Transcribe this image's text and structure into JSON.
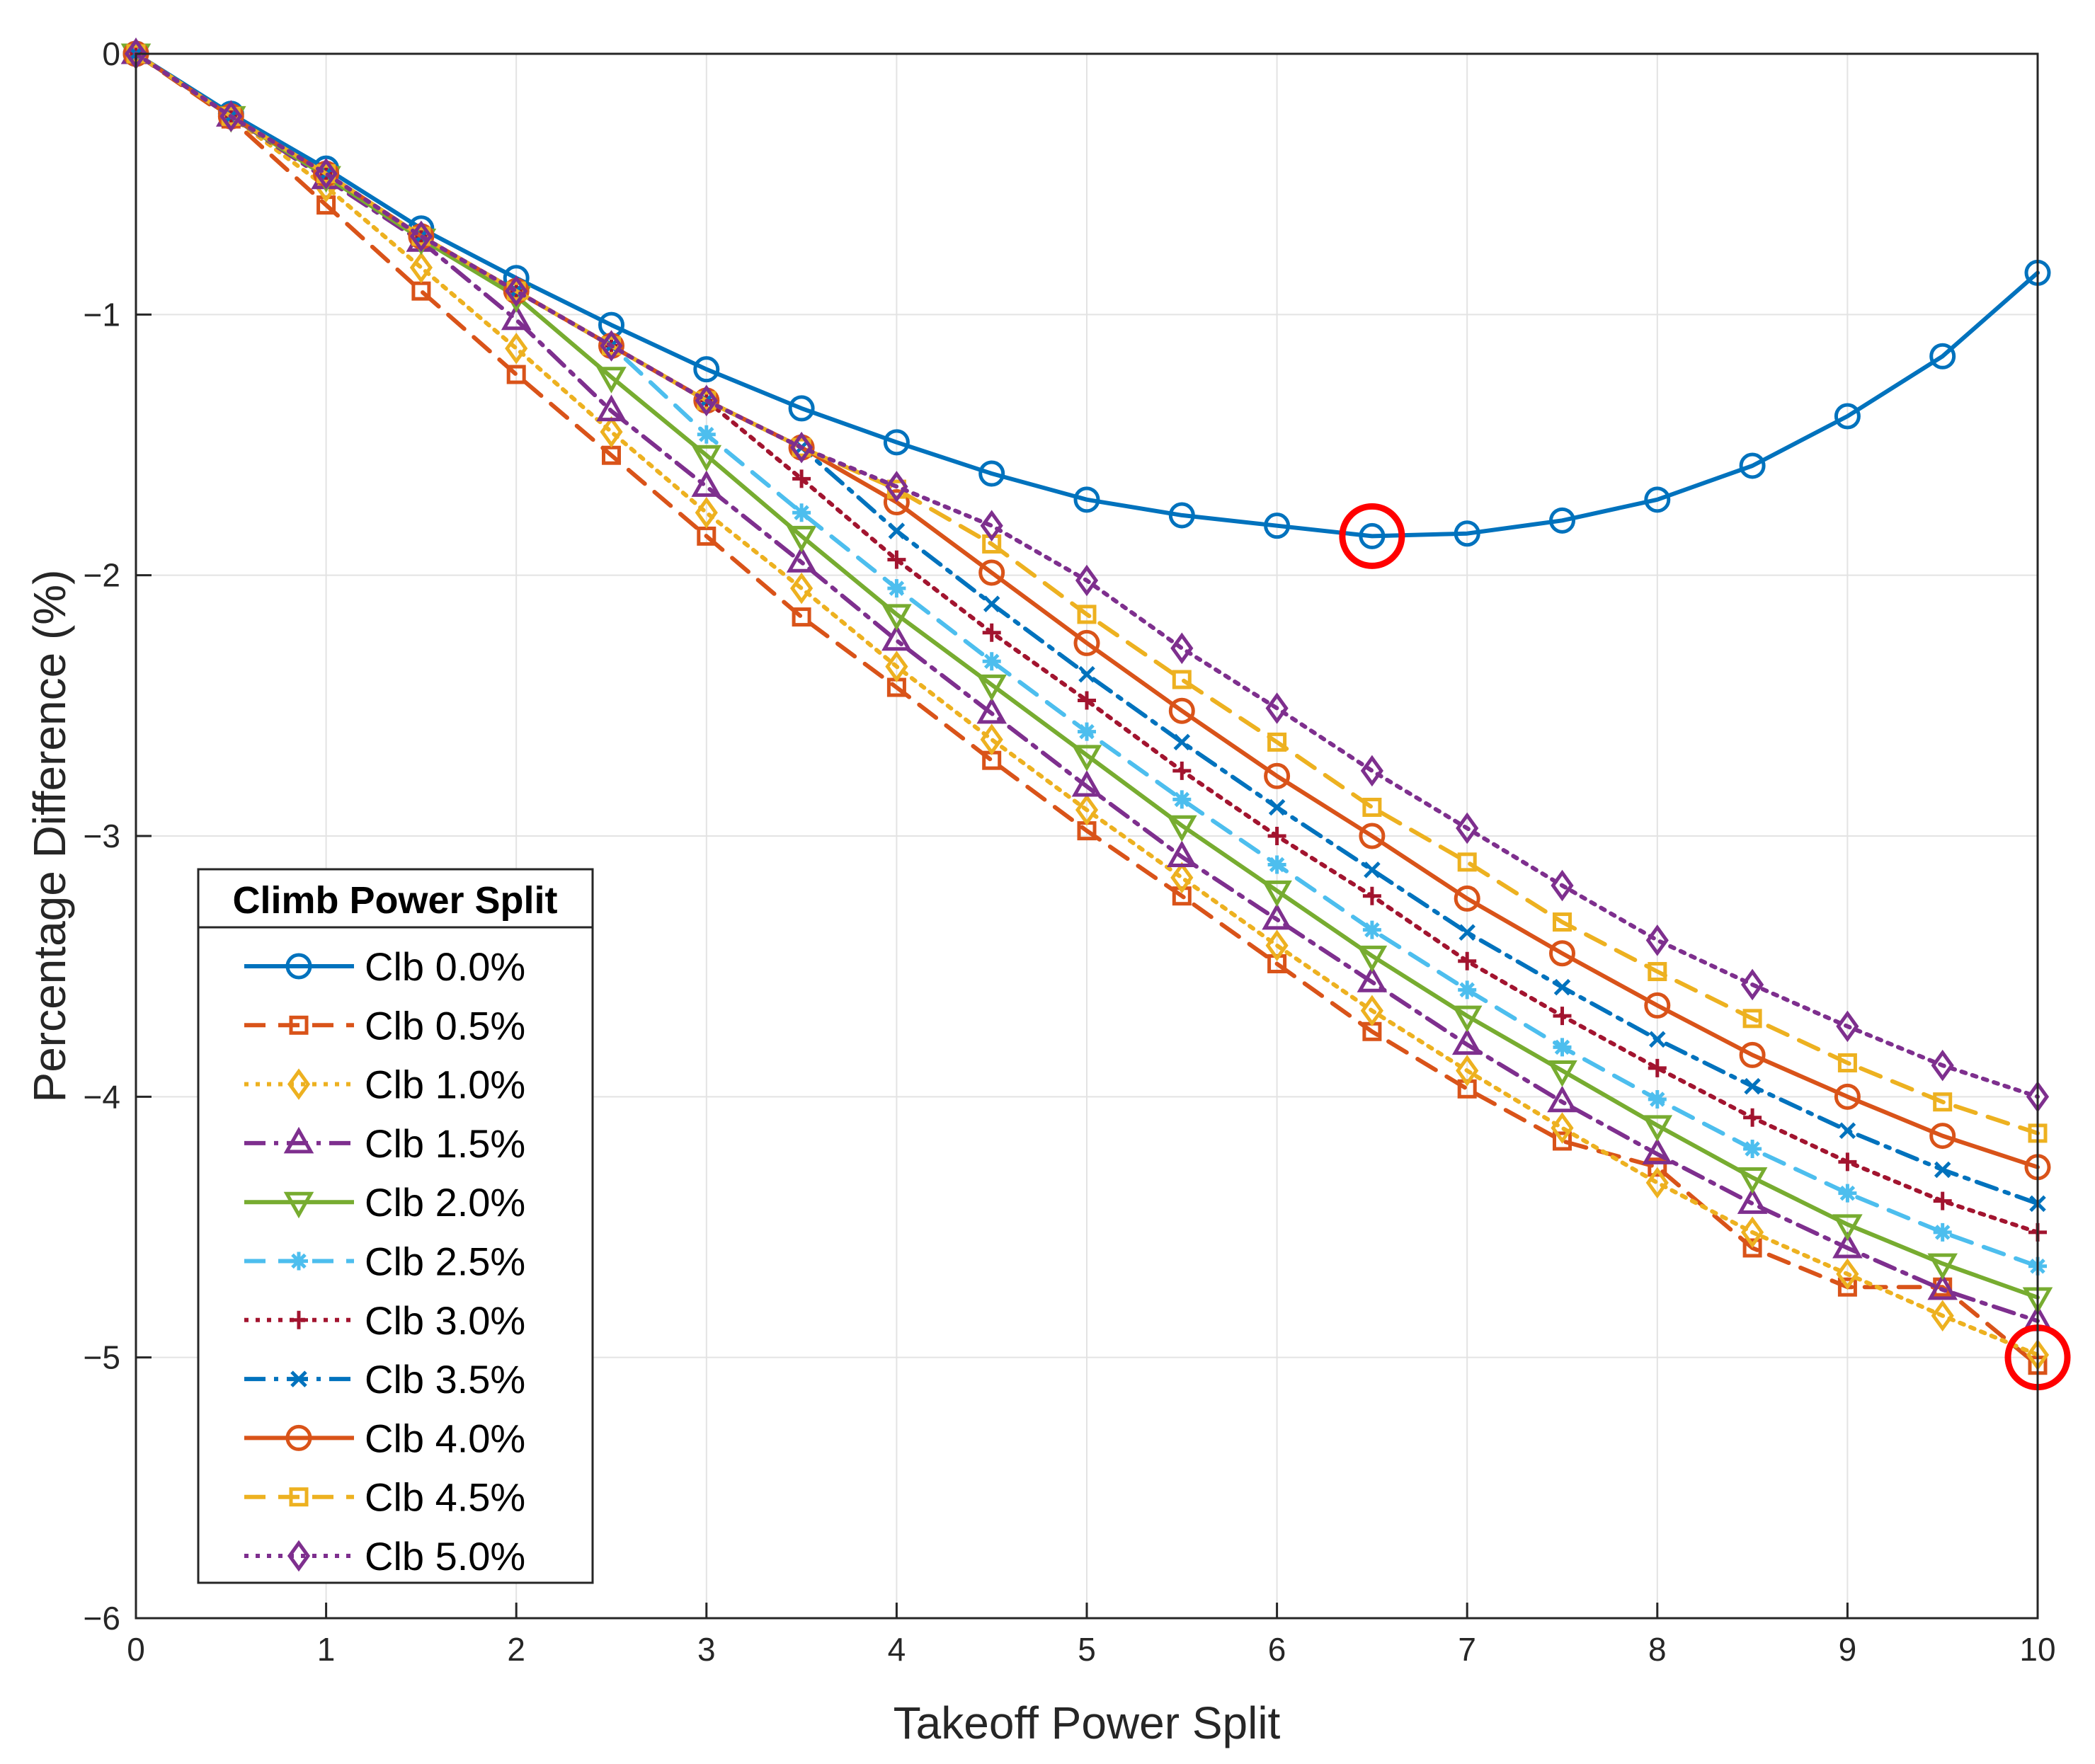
{
  "chart_data": {
    "type": "line",
    "xlabel": "Takeoff Power Split",
    "ylabel": "Percentage Difference (%)",
    "xlim": [
      0,
      10
    ],
    "ylim": [
      -6,
      0
    ],
    "xticks": [
      0,
      1,
      2,
      3,
      4,
      5,
      6,
      7,
      8,
      9,
      10
    ],
    "yticks": [
      0,
      -1,
      -2,
      -3,
      -4,
      -5,
      -6
    ],
    "x": [
      0,
      0.5,
      1,
      1.5,
      2,
      2.5,
      3,
      3.5,
      4,
      4.5,
      5,
      5.5,
      6,
      6.5,
      7,
      7.5,
      8,
      8.5,
      9,
      9.5,
      10
    ],
    "grid": true,
    "legend": {
      "title": "Climb Power Split",
      "location": "lower-left"
    },
    "series": [
      {
        "name": "Clb 0.0%",
        "color": "#0072BD",
        "dash": "solid",
        "marker": "circle",
        "values": [
          0,
          -0.23,
          -0.44,
          -0.67,
          -0.86,
          -1.04,
          -1.21,
          -1.36,
          -1.49,
          -1.61,
          -1.71,
          -1.77,
          -1.81,
          -1.85,
          -1.84,
          -1.79,
          -1.71,
          -1.58,
          -1.39,
          -1.16,
          -0.84
        ]
      },
      {
        "name": "Clb 0.5%",
        "color": "#D95319",
        "dash": "dashed",
        "marker": "square",
        "values": [
          0,
          -0.25,
          -0.58,
          -0.91,
          -1.23,
          -1.54,
          -1.85,
          -2.16,
          -2.43,
          -2.71,
          -2.98,
          -3.23,
          -3.49,
          -3.75,
          -3.97,
          -4.17,
          -4.27,
          -4.58,
          -4.73,
          -4.73,
          -5.03
        ]
      },
      {
        "name": "Clb 1.0%",
        "color": "#EDB120",
        "dash": "dotted",
        "marker": "diamond",
        "values": [
          0,
          -0.24,
          -0.51,
          -0.82,
          -1.13,
          -1.45,
          -1.76,
          -2.05,
          -2.35,
          -2.63,
          -2.9,
          -3.16,
          -3.42,
          -3.67,
          -3.9,
          -4.12,
          -4.33,
          -4.52,
          -4.68,
          -4.84,
          -4.99
        ]
      },
      {
        "name": "Clb 1.5%",
        "color": "#7E2F8E",
        "dash": "dashdot",
        "marker": "triangle-up",
        "values": [
          0,
          -0.24,
          -0.48,
          -0.72,
          -1.02,
          -1.37,
          -1.66,
          -1.95,
          -2.25,
          -2.53,
          -2.81,
          -3.08,
          -3.32,
          -3.56,
          -3.8,
          -4.02,
          -4.22,
          -4.41,
          -4.58,
          -4.74,
          -4.86
        ]
      },
      {
        "name": "Clb 2.0%",
        "color": "#77AC30",
        "dash": "solid",
        "marker": "triangle-down",
        "values": [
          0,
          -0.24,
          -0.47,
          -0.71,
          -0.93,
          -1.24,
          -1.54,
          -1.85,
          -2.15,
          -2.42,
          -2.69,
          -2.96,
          -3.21,
          -3.46,
          -3.69,
          -3.9,
          -4.11,
          -4.31,
          -4.49,
          -4.64,
          -4.77
        ]
      },
      {
        "name": "Clb 2.5%",
        "color": "#4DBEEE",
        "dash": "dashed",
        "marker": "asterisk",
        "values": [
          0,
          -0.24,
          -0.46,
          -0.7,
          -0.91,
          -1.12,
          -1.46,
          -1.76,
          -2.05,
          -2.33,
          -2.6,
          -2.86,
          -3.11,
          -3.36,
          -3.59,
          -3.81,
          -4.01,
          -4.2,
          -4.37,
          -4.52,
          -4.65
        ]
      },
      {
        "name": "Clb 3.0%",
        "color": "#A2142F",
        "dash": "dotted",
        "marker": "plus",
        "values": [
          0,
          -0.24,
          -0.46,
          -0.7,
          -0.91,
          -1.12,
          -1.33,
          -1.63,
          -1.94,
          -2.22,
          -2.48,
          -2.75,
          -3.0,
          -3.23,
          -3.48,
          -3.69,
          -3.89,
          -4.08,
          -4.25,
          -4.4,
          -4.52
        ]
      },
      {
        "name": "Clb 3.5%",
        "color": "#0072BD",
        "dash": "dashdot",
        "marker": "x",
        "values": [
          0,
          -0.24,
          -0.46,
          -0.7,
          -0.91,
          -1.12,
          -1.33,
          -1.51,
          -1.83,
          -2.11,
          -2.38,
          -2.64,
          -2.89,
          -3.13,
          -3.37,
          -3.58,
          -3.78,
          -3.96,
          -4.13,
          -4.28,
          -4.41
        ]
      },
      {
        "name": "Clb 4.0%",
        "color": "#D95319",
        "dash": "solid",
        "marker": "circle",
        "values": [
          0,
          -0.24,
          -0.46,
          -0.7,
          -0.91,
          -1.12,
          -1.33,
          -1.51,
          -1.72,
          -1.99,
          -2.26,
          -2.52,
          -2.77,
          -3.0,
          -3.24,
          -3.45,
          -3.65,
          -3.84,
          -4.0,
          -4.15,
          -4.27
        ]
      },
      {
        "name": "Clb 4.5%",
        "color": "#EDB120",
        "dash": "dashed",
        "marker": "square",
        "values": [
          0,
          -0.24,
          -0.46,
          -0.7,
          -0.91,
          -1.12,
          -1.33,
          -1.51,
          -1.67,
          -1.88,
          -2.15,
          -2.4,
          -2.64,
          -2.89,
          -3.1,
          -3.33,
          -3.52,
          -3.7,
          -3.87,
          -4.02,
          -4.14
        ]
      },
      {
        "name": "Clb 5.0%",
        "color": "#7E2F8E",
        "dash": "dotted",
        "marker": "diamond",
        "values": [
          0,
          -0.24,
          -0.46,
          -0.7,
          -0.91,
          -1.12,
          -1.33,
          -1.51,
          -1.66,
          -1.81,
          -2.02,
          -2.28,
          -2.51,
          -2.75,
          -2.97,
          -3.19,
          -3.4,
          -3.57,
          -3.73,
          -3.88,
          -4.0
        ]
      }
    ],
    "annotations": [
      {
        "type": "circle",
        "color": "#FF0000",
        "x": 6.5,
        "y": -1.85,
        "note": "minimum of Clb 0.0%"
      },
      {
        "type": "circle",
        "color": "#FF0000",
        "x": 10,
        "y": -5.0,
        "note": "minimum overall"
      }
    ]
  }
}
